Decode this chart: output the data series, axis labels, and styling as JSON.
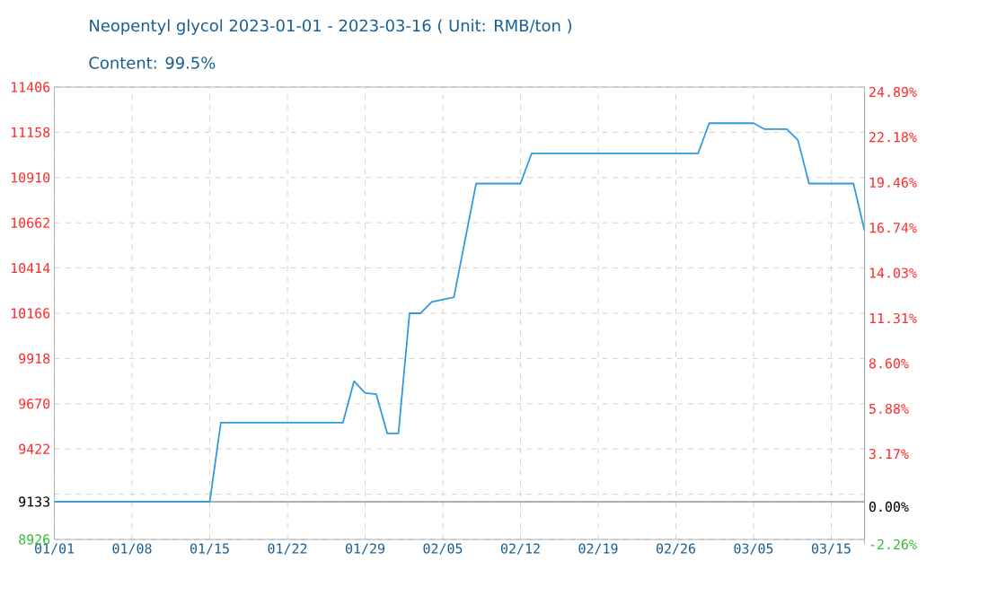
{
  "chart_data": {
    "type": "line",
    "title": "Neopentyl glycol 2023-01-01 - 2023-03-16    ( Unit: RMB/ton )",
    "subtitle": "Content: 99.5%",
    "x": [
      "2023-01-01",
      "2023-01-15",
      "2023-01-16",
      "2023-01-27",
      "2023-01-28",
      "2023-01-29",
      "2023-01-30",
      "2023-01-31",
      "2023-02-01",
      "2023-02-02",
      "2023-02-03",
      "2023-02-04",
      "2023-02-06",
      "2023-02-08",
      "2023-02-12",
      "2023-02-13",
      "2023-02-28",
      "2023-03-01",
      "2023-03-05",
      "2023-03-06",
      "2023-03-08",
      "2023-03-09",
      "2023-03-10",
      "2023-03-14",
      "2023-03-15"
    ],
    "series": [
      {
        "color": "#3399dd",
        "values": [
          9133,
          9133,
          9566,
          9566,
          9794,
          9729,
          9722,
          9507,
          9507,
          10166,
          10166,
          10228,
          10254,
          10877,
          10877,
          11042,
          11042,
          11208,
          11208,
          11175,
          11175,
          11115,
          10877,
          10877,
          10619
        ]
      }
    ],
    "xlim": [
      "2023-01-01",
      "2023-03-15"
    ],
    "xticks": [
      {
        "value": "2023-01-01",
        "label": "01/01"
      },
      {
        "value": "2023-01-08",
        "label": "01/08"
      },
      {
        "value": "2023-01-15",
        "label": "01/15"
      },
      {
        "value": "2023-01-22",
        "label": "01/22"
      },
      {
        "value": "2023-01-29",
        "label": "01/29"
      },
      {
        "value": "2023-02-05",
        "label": "02/05"
      },
      {
        "value": "2023-02-12",
        "label": "02/12"
      },
      {
        "value": "2023-02-19",
        "label": "02/19"
      },
      {
        "value": "2023-02-26",
        "label": "02/26"
      },
      {
        "value": "2023-03-05",
        "label": "03/05"
      },
      {
        "value": "2023-03-12",
        "label": "03/15"
      }
    ],
    "ylim": [
      8926,
      11406
    ],
    "yticks": [
      8926,
      9133,
      {
        "value": 9174,
        "label": null
      },
      9422,
      9670,
      9918,
      10166,
      10414,
      10662,
      10910,
      11158,
      11406
    ],
    "y2lim": [
      -2.26,
      24.89
    ],
    "y2ticks": [
      {
        "value": -2.26,
        "label": "-2.26%"
      },
      {
        "value": 0,
        "label": "0.00%"
      },
      {
        "value": 3.17,
        "label": "3.17%"
      },
      {
        "value": 5.88,
        "label": "5.88%"
      },
      {
        "value": 8.6,
        "label": "8.60%"
      },
      {
        "value": 11.31,
        "label": "11.31%"
      },
      {
        "value": 14.03,
        "label": "14.03%"
      },
      {
        "value": 16.74,
        "label": "16.74%"
      },
      {
        "value": 19.46,
        "label": "19.46%"
      },
      {
        "value": 22.18,
        "label": "22.18%"
      },
      {
        "value": 24.89,
        "label": "24.89%"
      }
    ],
    "ref_lines": [
      {
        "axis": "y",
        "value": 9133,
        "color": "#999999"
      }
    ],
    "grid": true,
    "marker": "none",
    "line_style": "solid"
  }
}
